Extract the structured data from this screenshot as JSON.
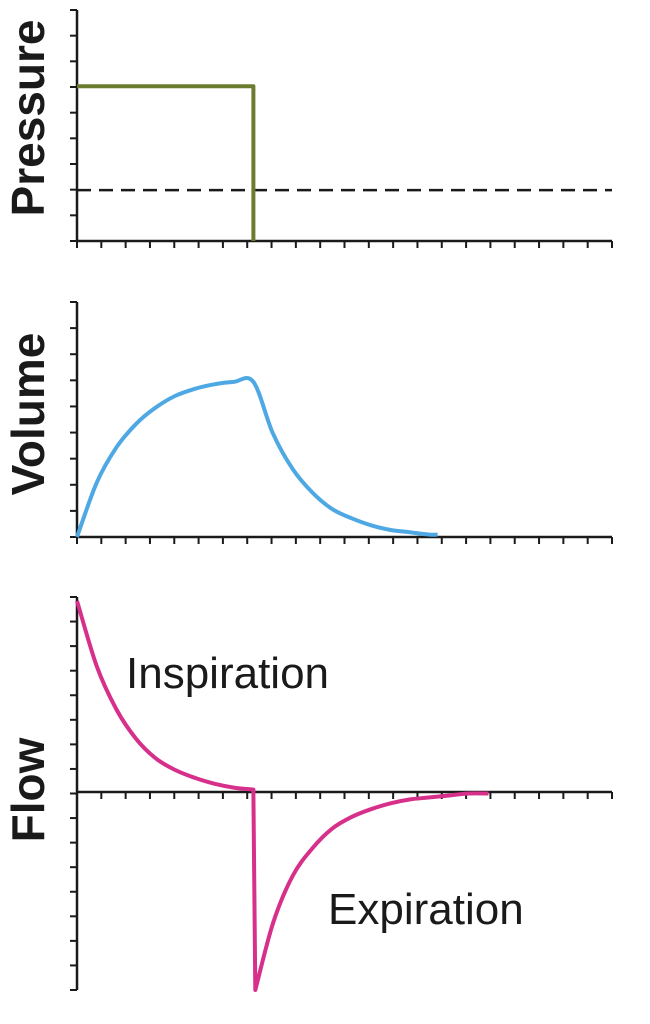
{
  "chart_data": [
    {
      "type": "line",
      "ylabel": "Pressure",
      "xlim": [
        0,
        3
      ],
      "ylim": [
        0,
        1
      ],
      "reference_line": {
        "style": "dashed",
        "y": 0.22
      },
      "series": [
        {
          "color": "#6b7c2e",
          "x": [
            0,
            0.9,
            0.9,
            0.9
          ],
          "y": [
            0.67,
            0.67,
            0.22,
            0
          ]
        }
      ]
    },
    {
      "type": "line",
      "ylabel": "Volume",
      "xlim": [
        0,
        3
      ],
      "ylim": [
        0,
        1
      ],
      "series": [
        {
          "color": "#4ea8e3",
          "x": [
            0.0,
            0.1,
            0.2,
            0.3,
            0.4,
            0.5,
            0.6,
            0.7,
            0.8,
            0.9,
            1.0,
            1.1,
            1.2,
            1.3,
            1.4,
            1.5,
            1.6,
            1.7,
            1.8,
            1.84
          ],
          "y": [
            0.0,
            0.23,
            0.38,
            0.48,
            0.55,
            0.6,
            0.63,
            0.65,
            0.66,
            0.66,
            0.44,
            0.29,
            0.19,
            0.12,
            0.08,
            0.05,
            0.03,
            0.02,
            0.01,
            0.01
          ]
        }
      ]
    },
    {
      "type": "line",
      "ylabel": "Flow",
      "xlim": [
        0,
        3
      ],
      "ylim": [
        -1,
        1
      ],
      "annotations": [
        "Inspiration",
        "Expiration"
      ],
      "series": [
        {
          "color": "#d6308b",
          "x": [
            0.0,
            0.1,
            0.2,
            0.3,
            0.4,
            0.5,
            0.6,
            0.7,
            0.8,
            0.9,
            0.9,
            0.91,
            1.0,
            1.1,
            1.2,
            1.3,
            1.4,
            1.5,
            1.6,
            1.7,
            1.8,
            1.9,
            2.0,
            2.1
          ],
          "y": [
            0.98,
            0.65,
            0.43,
            0.28,
            0.18,
            0.12,
            0.08,
            0.05,
            0.03,
            0.02,
            0.0,
            -1.0,
            -0.66,
            -0.42,
            -0.28,
            -0.18,
            -0.12,
            -0.08,
            -0.05,
            -0.03,
            -0.02,
            -0.01,
            0.0,
            0.0
          ]
        }
      ]
    }
  ]
}
